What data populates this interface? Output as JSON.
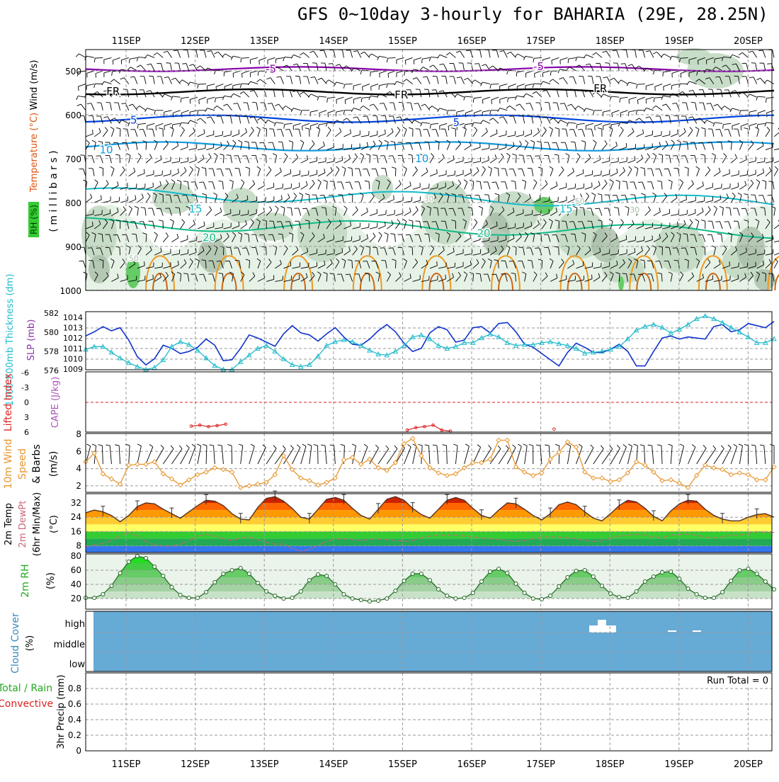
{
  "title": "GFS 0~10day 3-hourly for BAHARIA (29E, 28.25N)",
  "dates": [
    "11SEP",
    "12SEP",
    "13SEP",
    "14SEP",
    "15SEP",
    "16SEP",
    "17SEP",
    "18SEP",
    "19SEP",
    "20SEP"
  ],
  "colors": {
    "rh_light": "#e6f2e6",
    "rh_mid": "#c2d9c2",
    "rh_dark": "#a8bda8",
    "rh_green": "#66cc66",
    "t_purple": "#8800aa",
    "t_black": "#000000",
    "t_blue": "#0044dd",
    "t_sky": "#1199dd",
    "t_cyan": "#11bbcc",
    "t_teal": "#11bb88",
    "t_orange": "#ee9922",
    "t_darkorange": "#cc6611",
    "slp": "#1133cc",
    "thickness": "#22bbcc",
    "lifted": "#dd2222",
    "wind": "#e6962e",
    "temp_fill": "#cc2200",
    "dew": "#cc6677",
    "rh2m": "#33cc33",
    "cloud": "#66aad6",
    "precip": "#33aa33"
  },
  "chart_data": [
    {
      "type": "heatmap",
      "panel": "upper-air",
      "ylabel_parts": [
        "Wind (m/s)",
        "Temperature (°C)",
        "RH (%)"
      ],
      "ylabel_units": "( m i l l i b a r s )",
      "y_ticks": [
        "500",
        "600",
        "700",
        "800",
        "900",
        "1000"
      ],
      "ylim": [
        1000,
        450
      ],
      "contour_labels": [
        {
          "t": "-5",
          "x": 0.27,
          "p": 496,
          "c": "t_purple"
        },
        {
          "t": "-5",
          "x": 0.66,
          "p": 490,
          "c": "t_purple"
        },
        {
          "t": "FR",
          "x": 0.04,
          "p": 547,
          "c": "t_black"
        },
        {
          "t": "FR",
          "x": 0.46,
          "p": 555,
          "c": "t_black"
        },
        {
          "t": "FR",
          "x": 0.75,
          "p": 540,
          "c": "t_black"
        },
        {
          "t": "5",
          "x": 0.07,
          "p": 612,
          "c": "t_blue"
        },
        {
          "t": "5",
          "x": 0.54,
          "p": 618,
          "c": "t_blue"
        },
        {
          "t": "10",
          "x": 0.03,
          "p": 680,
          "c": "t_sky"
        },
        {
          "t": "10",
          "x": 0.49,
          "p": 700,
          "c": "t_sky"
        },
        {
          "t": "15",
          "x": 0.16,
          "p": 815,
          "c": "t_cyan"
        },
        {
          "t": "15",
          "x": 0.7,
          "p": 815,
          "c": "t_cyan"
        },
        {
          "t": "20",
          "x": 0.18,
          "p": 880,
          "c": "t_teal"
        },
        {
          "t": "20",
          "x": 0.58,
          "p": 870,
          "c": "t_teal"
        },
        {
          "t": "50",
          "x": 0.07,
          "p": 925,
          "c": "rh_dark"
        },
        {
          "t": "30",
          "x": 0.5,
          "p": 790,
          "c": "rh_dark"
        },
        {
          "t": "50",
          "x": 0.72,
          "p": 795,
          "c": "rh_dark"
        },
        {
          "t": "30",
          "x": 0.8,
          "p": 815,
          "c": "rh_dark"
        }
      ]
    },
    {
      "type": "line",
      "panel": "slp-thickness",
      "ylabel_left": "1000-500mb Thickness (dm)",
      "ylabel_right": "SLP (mb)",
      "y_ticks_left": [
        "582",
        "580",
        "578",
        "576"
      ],
      "y_ticks_right": [
        "1014",
        "1013",
        "1012",
        "1011",
        "1010",
        "1009"
      ],
      "series": [
        {
          "name": "SLP (mb)",
          "values": [
            1012.2,
            1012.6,
            1013.1,
            1012.7,
            1013.0,
            1011.8,
            1010.2,
            1009.4,
            1010.0,
            1011.3,
            1011.0,
            1010.5,
            1010.7,
            1011.1,
            1011.9,
            1011.3,
            1009.8,
            1009.9,
            1011.0,
            1012.3,
            1012.0,
            1011.6,
            1011.2,
            1012.4,
            1013.2,
            1012.5,
            1012.3,
            1011.7,
            1012.4,
            1013.0,
            1012.1,
            1011.4,
            1011.3,
            1011.9,
            1012.7,
            1013.3,
            1012.6,
            1011.5,
            1010.7,
            1011.0,
            1012.5,
            1013.1,
            1012.8,
            1011.6,
            1011.8,
            1013.0,
            1013.1,
            1012.5,
            1013.4,
            1013.5,
            1012.6,
            1011.4,
            1011.1,
            1010.5,
            1009.9,
            1009.3,
            1010.6,
            1011.5,
            1011.1,
            1010.6,
            1010.6,
            1010.9,
            1011.4,
            1010.7,
            1009.3,
            1009.3,
            1010.7,
            1012.0,
            1012.2,
            1011.9,
            1012.1,
            1012.0,
            1011.9,
            1013.1,
            1013.3,
            1012.6,
            1012.8,
            1013.4,
            1013.2,
            1013.0,
            1013.6
          ]
        },
        {
          "name": "Thickness (dm)",
          "values": [
            578.2,
            578.5,
            578.5,
            577.9,
            577.3,
            576.8,
            576.4,
            576.1,
            576.3,
            577.1,
            578.5,
            579.0,
            578.7,
            578.1,
            577.3,
            576.5,
            576.1,
            576.1,
            576.9,
            577.6,
            578.3,
            578.6,
            578.0,
            577.2,
            576.6,
            576.4,
            576.6,
            577.5,
            578.6,
            579.0,
            579.2,
            579.0,
            578.6,
            578.1,
            577.7,
            577.6,
            578.0,
            578.6,
            579.5,
            579.7,
            579.3,
            578.6,
            578.3,
            578.5,
            578.9,
            578.9,
            579.4,
            579.8,
            579.5,
            578.9,
            578.6,
            578.7,
            578.7,
            578.9,
            579.0,
            578.8,
            578.6,
            578.3,
            577.8,
            577.9,
            578.0,
            578.2,
            578.5,
            579.3,
            580.2,
            580.6,
            580.8,
            580.5,
            579.9,
            580.3,
            580.8,
            581.4,
            581.7,
            581.4,
            581.0,
            580.5,
            580.0,
            579.5,
            578.9,
            578.9,
            579.3
          ]
        }
      ]
    },
    {
      "type": "line",
      "panel": "lifted-cape",
      "ylabel_left": "Lifted Index",
      "ylabel_right": "CAPE (J/kg)",
      "y_ticks": [
        "-6",
        "-3",
        "0",
        "3",
        "6"
      ],
      "ylim": [
        -6,
        6
      ],
      "segments": [
        {
          "x": [
            1.25,
            1.375,
            1.5,
            1.625,
            1.75
          ],
          "y": [
            4.8,
            4.6,
            4.9,
            4.7,
            4.4
          ]
        },
        {
          "x": [
            4.375,
            4.5,
            4.625,
            4.75,
            4.875,
            5.0
          ],
          "y": [
            5.6,
            5.1,
            4.9,
            4.6,
            5.6,
            5.8
          ]
        },
        {
          "x": [
            6.5
          ],
          "y": [
            5.4
          ]
        }
      ]
    },
    {
      "type": "line",
      "panel": "wind10m",
      "ylabel": "10m Wind Speed (m/s) & Barbs",
      "y_ticks": [
        "2",
        "4",
        "6",
        "8"
      ],
      "ylim": [
        1.5,
        8
      ],
      "values": [
        4.8,
        5.8,
        3.4,
        2.8,
        2.2,
        4.4,
        4.5,
        4.5,
        4.8,
        3.4,
        2.8,
        2.1,
        2.7,
        3.3,
        3.6,
        4.1,
        3.9,
        3.6,
        1.8,
        2.0,
        2.2,
        2.4,
        3.3,
        5.5,
        3.9,
        2.9,
        2.6,
        2.1,
        2.4,
        2.9,
        5.0,
        5.3,
        4.5,
        5.1,
        4.1,
        3.8,
        4.7,
        6.9,
        7.5,
        5.5,
        4.1,
        3.5,
        3.2,
        3.4,
        4.1,
        4.7,
        4.7,
        5.1,
        7.3,
        7.3,
        4.2,
        3.6,
        3.2,
        3.5,
        5.1,
        5.9,
        7.1,
        6.5,
        3.6,
        2.9,
        2.9,
        2.5,
        2.7,
        3.5,
        4.8,
        4.4,
        3.6,
        2.6,
        2.7,
        2.3,
        1.8,
        3.2,
        4.4,
        4.1,
        3.9,
        3.3,
        3.5,
        3.3,
        2.7,
        2.7,
        4.2
      ]
    },
    {
      "type": "area",
      "panel": "temp2m",
      "ylabel": "2m Temp 2m DewPt (6hr Min/Max) (°C)",
      "y_ticks": [
        "8",
        "16",
        "24",
        "32"
      ],
      "ylim": [
        2,
        36
      ],
      "temp_values": [
        26.5,
        28.0,
        27.0,
        25.0,
        21.5,
        25.0,
        30.0,
        32.0,
        31.5,
        28.5,
        26.0,
        23.5,
        27.0,
        30.5,
        33.5,
        33.0,
        30.5,
        26.0,
        23.0,
        22.5,
        29.5,
        34.5,
        35.5,
        33.0,
        29.0,
        24.0,
        23.0,
        28.5,
        34.0,
        35.0,
        33.5,
        29.0,
        25.0,
        23.0,
        28.5,
        34.0,
        35.5,
        33.5,
        29.0,
        25.5,
        23.5,
        28.5,
        33.5,
        35.0,
        33.5,
        29.0,
        25.0,
        23.5,
        28.0,
        32.0,
        31.5,
        28.5,
        25.0,
        22.5,
        26.0,
        31.0,
        32.5,
        31.0,
        27.0,
        23.5,
        22.0,
        26.0,
        30.5,
        33.5,
        32.5,
        29.0,
        24.5,
        22.0,
        27.5,
        31.5,
        33.5,
        33.0,
        28.5,
        25.0,
        23.0,
        22.0,
        22.0,
        24.0,
        25.5,
        26.0,
        24.0
      ],
      "dew_values": [
        7.5,
        8.5,
        9.5,
        11.0,
        13.5,
        15.5,
        13.5,
        10.5,
        8.5,
        8.0,
        8.0,
        9.0,
        11.0,
        13.5,
        14.5,
        13.5,
        12.0,
        11.0,
        12.5,
        13.0,
        11.5,
        10.0,
        9.0,
        9.0,
        6.5,
        5.0,
        6.0,
        8.5,
        10.5,
        12.0,
        12.0,
        11.5,
        11.0,
        11.5,
        12.0,
        11.5,
        11.0,
        10.5,
        11.0,
        12.5,
        13.5,
        14.0,
        14.0,
        14.0,
        13.5,
        13.0,
        12.5,
        12.0,
        11.5,
        11.0,
        10.5,
        11.0,
        12.0,
        13.0,
        13.0,
        13.0,
        12.5,
        12.0,
        11.0,
        10.5,
        11.0,
        12.5,
        13.5,
        14.0,
        14.5,
        14.0,
        13.0,
        12.5,
        14.0,
        14.5,
        14.5,
        14.0,
        13.0,
        12.5,
        13.0,
        14.0,
        14.0,
        15.0,
        16.0,
        15.5,
        15.5
      ]
    },
    {
      "type": "area",
      "panel": "rh2m",
      "ylabel": "2m RH (%)",
      "y_ticks": [
        "20",
        "40",
        "60",
        "80"
      ],
      "ylim": [
        10,
        85
      ],
      "values": [
        21,
        21,
        26,
        38,
        56,
        72,
        80,
        77,
        65,
        52,
        36,
        25,
        21,
        21,
        29,
        43,
        55,
        60,
        63,
        55,
        42,
        30,
        24,
        20,
        21,
        30,
        46,
        54,
        52,
        40,
        26,
        20,
        18,
        16,
        17,
        20,
        31,
        45,
        55,
        55,
        46,
        33,
        24,
        20,
        21,
        28,
        44,
        58,
        62,
        56,
        41,
        28,
        20,
        19,
        24,
        37,
        50,
        59,
        60,
        51,
        38,
        27,
        22,
        21,
        30,
        44,
        51,
        57,
        58,
        48,
        34,
        26,
        21,
        21,
        29,
        45,
        60,
        62,
        55,
        44,
        33
      ]
    },
    {
      "type": "heatmap",
      "panel": "cloud",
      "ylabel": "Cloud Cover (%)",
      "y_ticks": [
        "high",
        "middle",
        "low"
      ]
    },
    {
      "type": "bar",
      "panel": "precip",
      "ylabel_parts": [
        "Total / Rain",
        "Convective",
        "3hr Precip (mm)"
      ],
      "y_ticks": [
        "0",
        "0.2",
        "0.4",
        "0.6",
        "0.8"
      ],
      "ylim": [
        0,
        1
      ],
      "values": [],
      "run_total": "Run Total = 0"
    }
  ]
}
